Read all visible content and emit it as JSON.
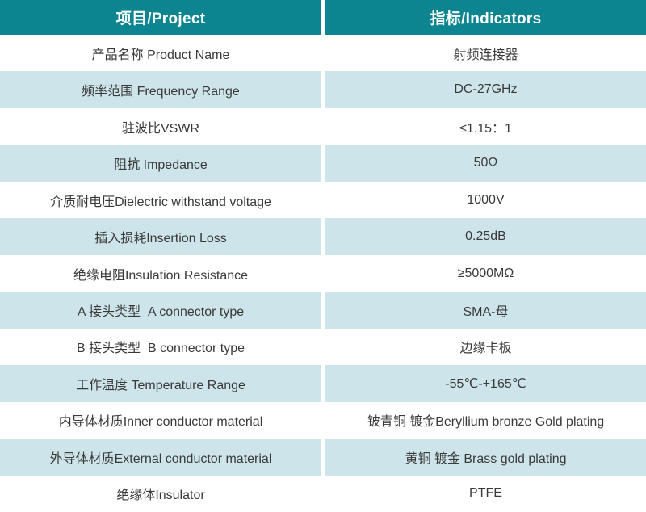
{
  "colors": {
    "header_background": "#0c8591",
    "header_text": "#ffffff",
    "tint_row_background": "#cde5ea",
    "plain_row_background": "#ffffff",
    "body_text": "#3a3a3a",
    "column_divider": "#ffffff"
  },
  "header": {
    "project": "项目/Project",
    "indicators": "指标/Indicators"
  },
  "rows": [
    {
      "label": "产品名称 Product Name",
      "value": "射频连接器"
    },
    {
      "label": "频率范围 Frequency Range",
      "value": "DC-27GHz"
    },
    {
      "label": "驻波比VSWR",
      "value": "≤1.15：1"
    },
    {
      "label": "阻抗 Impedance",
      "value": "50Ω"
    },
    {
      "label": "介质耐电压Dielectric withstand voltage",
      "value": "1000V"
    },
    {
      "label": "插入损耗Insertion Loss",
      "value": "0.25dB"
    },
    {
      "label": "绝缘电阻Insulation Resistance",
      "value": "≥5000MΩ"
    },
    {
      "label": "A 接头类型  A connector type",
      "value": "SMA-母"
    },
    {
      "label": "B 接头类型  B connector type",
      "value": "边缘卡板"
    },
    {
      "label": "工作温度 Temperature Range",
      "value": "-55℃-+165℃"
    },
    {
      "label": "内导体材质Inner conductor material",
      "value": "铍青铜 镀金Beryllium bronze Gold plating"
    },
    {
      "label": "外导体材质External conductor material",
      "value": "黄铜 镀金 Brass gold plating"
    },
    {
      "label": "绝缘体Insulator",
      "value": "PTFE"
    }
  ]
}
